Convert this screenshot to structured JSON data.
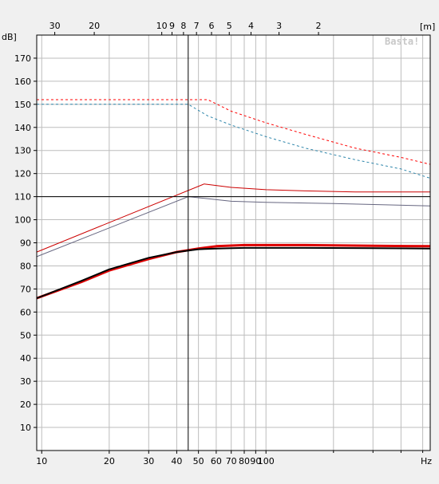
{
  "chart_data": {
    "type": "line",
    "watermark": "Basta!",
    "y_unit_label": "dB]",
    "x_unit_label": "Hz",
    "top_unit_label": "[m]",
    "x_scale": "log",
    "x_range": [
      9.5,
      540
    ],
    "y_range": [
      0,
      180
    ],
    "grid": true,
    "x_ticks": [
      10,
      20,
      30,
      40,
      50,
      60,
      70,
      80,
      90,
      100
    ],
    "x_tick_labels": [
      "10",
      "20",
      "30",
      "40",
      "50",
      "60",
      "70",
      "80",
      "90",
      "100"
    ],
    "y_ticks": [
      10,
      20,
      30,
      40,
      50,
      60,
      70,
      80,
      90,
      100,
      110,
      120,
      130,
      140,
      150,
      160,
      170
    ],
    "y_tick_labels": [
      "10",
      "20",
      "30",
      "40",
      "50",
      "60",
      "70",
      "80",
      "90",
      "100",
      "110",
      "120",
      "130",
      "140",
      "150",
      "160",
      "170"
    ],
    "top_ticks_m": [
      30,
      20,
      10,
      9,
      8,
      7,
      6,
      5,
      4,
      3,
      2
    ],
    "top_tick_labels": [
      "30",
      "20",
      "10",
      "9",
      "8",
      "7",
      "6",
      "5",
      "4",
      "3",
      "2"
    ],
    "cursor": {
      "x": 45,
      "y": 110
    },
    "series": [
      {
        "color": "#ff0000",
        "style": "dashed",
        "width": 1,
        "points": [
          [
            9.5,
            152
          ],
          [
            55,
            152
          ],
          [
            70,
            147
          ],
          [
            100,
            142
          ],
          [
            150,
            137
          ],
          [
            250,
            131
          ],
          [
            400,
            127
          ],
          [
            540,
            124
          ]
        ]
      },
      {
        "color": "#2e86ab",
        "style": "dashed",
        "width": 1,
        "points": [
          [
            9.5,
            150
          ],
          [
            45,
            150
          ],
          [
            55,
            145
          ],
          [
            70,
            141
          ],
          [
            100,
            136
          ],
          [
            150,
            131
          ],
          [
            250,
            126
          ],
          [
            400,
            122
          ],
          [
            540,
            118
          ]
        ]
      },
      {
        "color": "#cc0000",
        "style": "solid",
        "width": 1,
        "points": [
          [
            9.5,
            86
          ],
          [
            53,
            115.5
          ],
          [
            70,
            114
          ],
          [
            100,
            113
          ],
          [
            150,
            112.5
          ],
          [
            250,
            112
          ],
          [
            540,
            112
          ]
        ]
      },
      {
        "color": "#666680",
        "style": "solid",
        "width": 1,
        "points": [
          [
            9.5,
            84
          ],
          [
            45,
            110
          ],
          [
            70,
            108
          ],
          [
            100,
            107.5
          ],
          [
            200,
            107
          ],
          [
            540,
            106
          ]
        ]
      },
      {
        "color": "#dd0000",
        "style": "solid",
        "width": 3,
        "points": [
          [
            9.5,
            66
          ],
          [
            15,
            73
          ],
          [
            20,
            78
          ],
          [
            30,
            83
          ],
          [
            40,
            86
          ],
          [
            50,
            87.5
          ],
          [
            60,
            88.5
          ],
          [
            80,
            89
          ],
          [
            150,
            89
          ],
          [
            300,
            88.7
          ],
          [
            540,
            88.5
          ]
        ]
      },
      {
        "color": "#000000",
        "style": "solid",
        "width": 2,
        "points": [
          [
            9.5,
            66
          ],
          [
            15,
            73.5
          ],
          [
            20,
            78.5
          ],
          [
            30,
            83.5
          ],
          [
            40,
            86
          ],
          [
            50,
            87.2
          ],
          [
            60,
            87.5
          ],
          [
            80,
            87.8
          ],
          [
            150,
            87.8
          ],
          [
            300,
            87.7
          ],
          [
            540,
            87.5
          ]
        ]
      }
    ]
  }
}
